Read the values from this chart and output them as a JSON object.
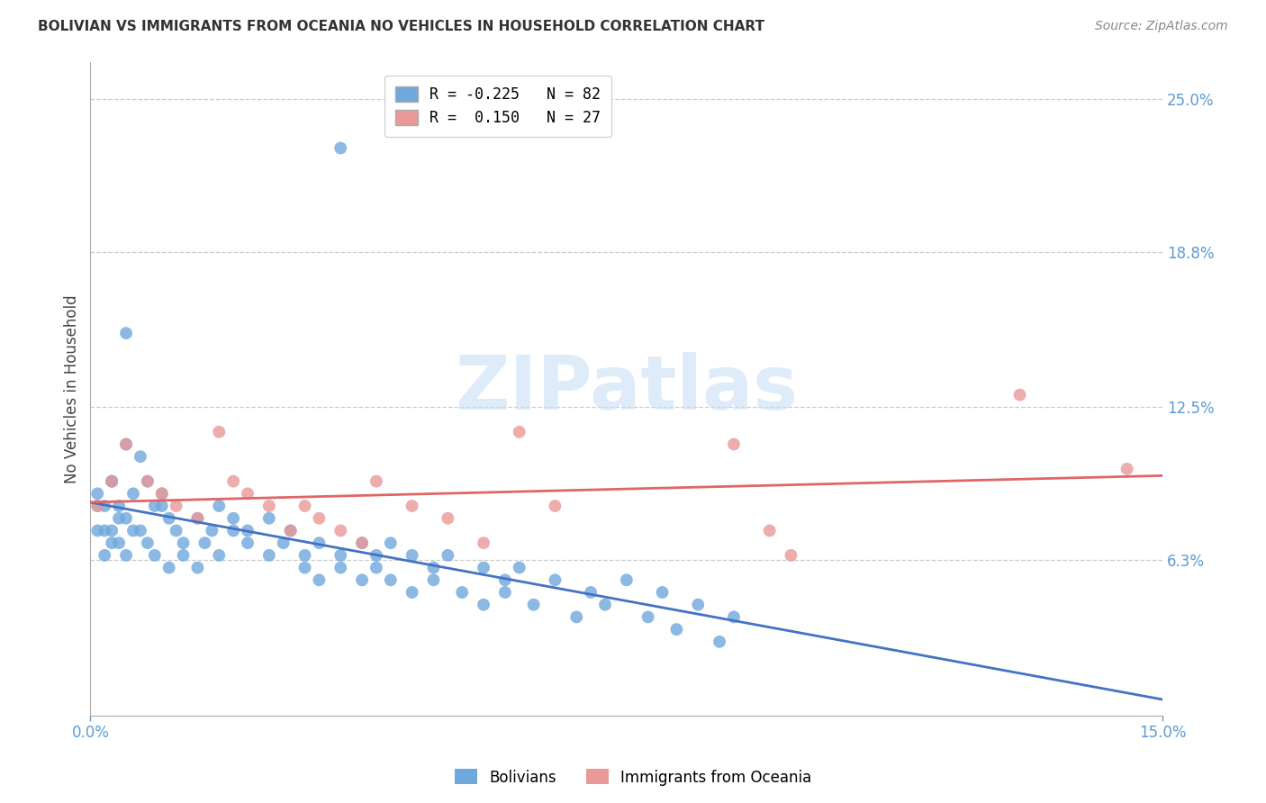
{
  "title": "BOLIVIAN VS IMMIGRANTS FROM OCEANIA NO VEHICLES IN HOUSEHOLD CORRELATION CHART",
  "source": "Source: ZipAtlas.com",
  "ylabel": "No Vehicles in Household",
  "color_blue": "#6fa8dc",
  "color_pink": "#ea9999",
  "color_blue_line": "#4472c4",
  "color_pink_line": "#e06666",
  "xlim": [
    0.0,
    0.15
  ],
  "ylim": [
    0.0,
    0.265
  ],
  "ytick_values": [
    0.063,
    0.125,
    0.188,
    0.25
  ],
  "ytick_labels": [
    "6.3%",
    "12.5%",
    "18.8%",
    "25.0%"
  ],
  "xtick_values": [
    0.0,
    0.15
  ],
  "xtick_labels": [
    "0.0%",
    "15.0%"
  ],
  "blue_R": -0.225,
  "blue_N": 82,
  "pink_R": 0.15,
  "pink_N": 27,
  "blue_scatter_x": [
    0.003,
    0.001,
    0.002,
    0.001,
    0.004,
    0.003,
    0.002,
    0.005,
    0.001,
    0.003,
    0.004,
    0.002,
    0.006,
    0.005,
    0.003,
    0.007,
    0.004,
    0.006,
    0.008,
    0.005,
    0.009,
    0.007,
    0.01,
    0.008,
    0.011,
    0.009,
    0.012,
    0.01,
    0.013,
    0.011,
    0.015,
    0.013,
    0.017,
    0.015,
    0.018,
    0.016,
    0.02,
    0.018,
    0.022,
    0.02,
    0.025,
    0.022,
    0.027,
    0.025,
    0.03,
    0.028,
    0.032,
    0.03,
    0.035,
    0.032,
    0.038,
    0.035,
    0.04,
    0.038,
    0.042,
    0.04,
    0.045,
    0.042,
    0.048,
    0.045,
    0.05,
    0.048,
    0.055,
    0.052,
    0.058,
    0.055,
    0.06,
    0.058,
    0.065,
    0.062,
    0.07,
    0.068,
    0.075,
    0.072,
    0.08,
    0.078,
    0.085,
    0.082,
    0.09,
    0.088,
    0.035,
    0.005
  ],
  "blue_scatter_y": [
    0.095,
    0.075,
    0.085,
    0.09,
    0.08,
    0.095,
    0.075,
    0.11,
    0.085,
    0.075,
    0.07,
    0.065,
    0.09,
    0.08,
    0.07,
    0.105,
    0.085,
    0.075,
    0.095,
    0.065,
    0.085,
    0.075,
    0.09,
    0.07,
    0.08,
    0.065,
    0.075,
    0.085,
    0.07,
    0.06,
    0.08,
    0.065,
    0.075,
    0.06,
    0.085,
    0.07,
    0.075,
    0.065,
    0.07,
    0.08,
    0.065,
    0.075,
    0.07,
    0.08,
    0.065,
    0.075,
    0.07,
    0.06,
    0.065,
    0.055,
    0.07,
    0.06,
    0.065,
    0.055,
    0.07,
    0.06,
    0.065,
    0.055,
    0.06,
    0.05,
    0.065,
    0.055,
    0.06,
    0.05,
    0.055,
    0.045,
    0.06,
    0.05,
    0.055,
    0.045,
    0.05,
    0.04,
    0.055,
    0.045,
    0.05,
    0.04,
    0.045,
    0.035,
    0.04,
    0.03,
    0.23,
    0.155
  ],
  "pink_scatter_x": [
    0.001,
    0.003,
    0.005,
    0.008,
    0.01,
    0.012,
    0.015,
    0.018,
    0.02,
    0.022,
    0.025,
    0.028,
    0.03,
    0.032,
    0.035,
    0.038,
    0.04,
    0.045,
    0.05,
    0.055,
    0.06,
    0.065,
    0.09,
    0.095,
    0.098,
    0.13,
    0.145
  ],
  "pink_scatter_y": [
    0.085,
    0.095,
    0.11,
    0.095,
    0.09,
    0.085,
    0.08,
    0.115,
    0.095,
    0.09,
    0.085,
    0.075,
    0.085,
    0.08,
    0.075,
    0.07,
    0.095,
    0.085,
    0.08,
    0.07,
    0.115,
    0.085,
    0.11,
    0.075,
    0.065,
    0.13,
    0.1
  ],
  "watermark_text": "ZIPatlas",
  "watermark_color": "#c8dff5",
  "title_fontsize": 11,
  "tick_fontsize": 12,
  "ylabel_fontsize": 12,
  "legend_fontsize": 12
}
